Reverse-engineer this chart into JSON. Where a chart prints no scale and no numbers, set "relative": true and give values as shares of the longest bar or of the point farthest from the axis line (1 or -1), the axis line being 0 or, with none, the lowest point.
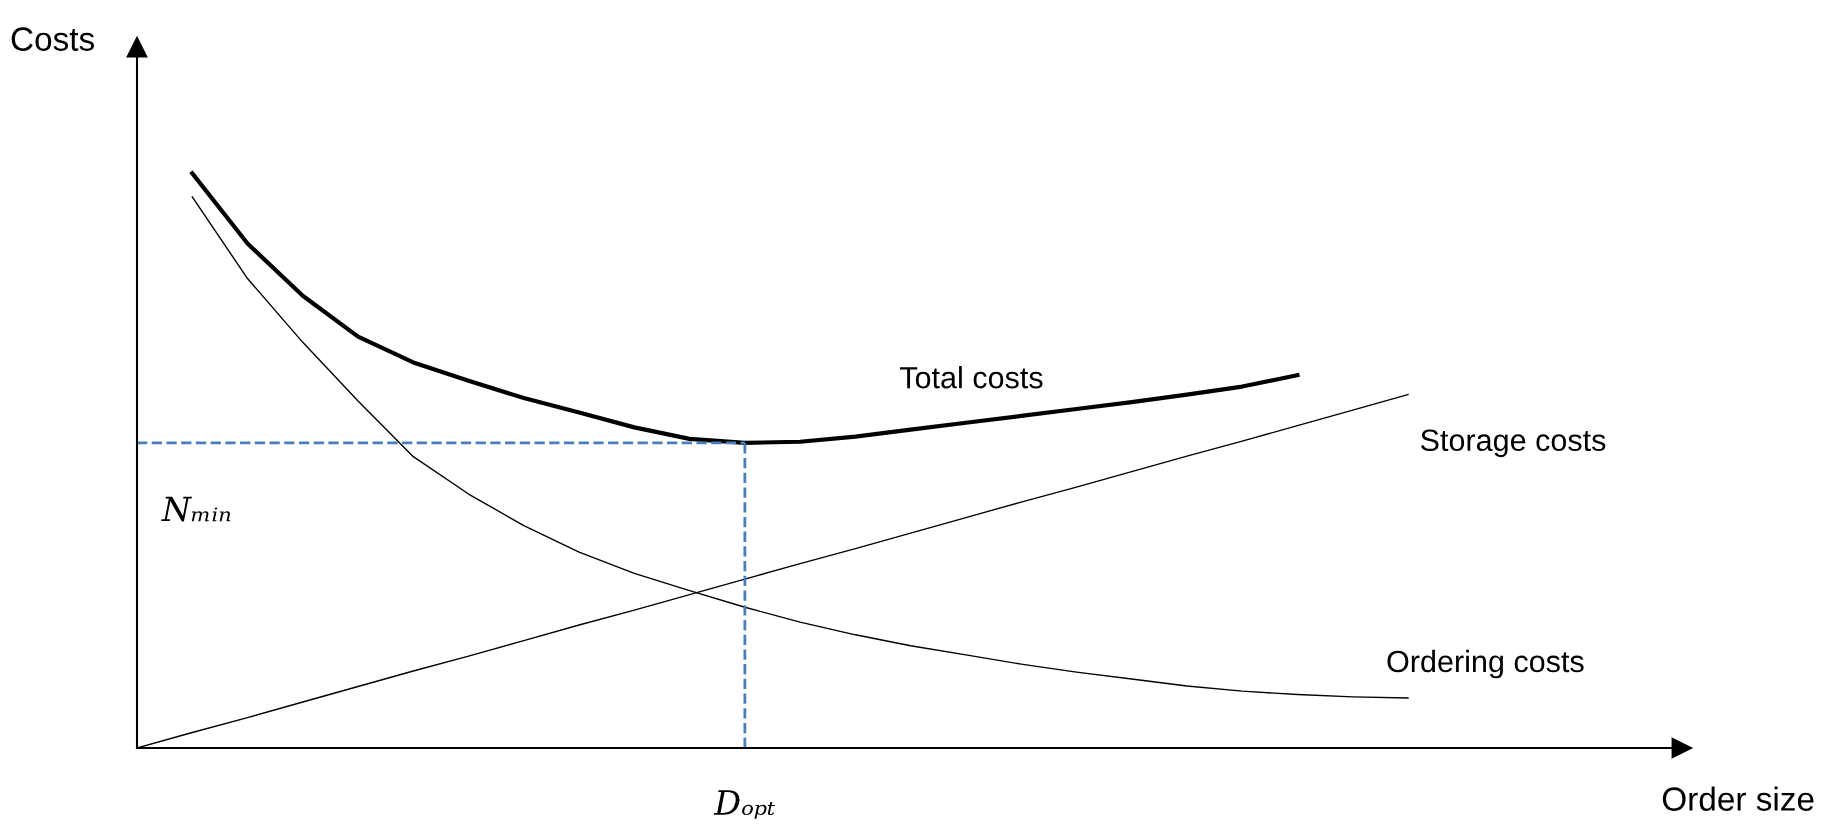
{
  "chart_data": {
    "type": "line",
    "relative": true,
    "ylabel": "Costs",
    "annotations": [
      "Order size",
      "Dₒₚₜ"
    ],
    "categories": [
      null,
      null,
      null,
      null,
      null,
      null,
      null,
      null,
      null,
      null,
      null,
      null,
      null,
      null,
      null,
      null,
      null,
      null,
      null,
      null,
      null,
      null,
      null,
      null
    ],
    "series": [
      {
        "name": "Total costs",
        "color": "#000000",
        "values": [
          null,
          1.0,
          0.878,
          0.787,
          0.716,
          0.671,
          0.639,
          0.609,
          0.584,
          0.558,
          0.538,
          0.531,
          0.533,
          0.542,
          0.554,
          0.566,
          0.578,
          0.59,
          0.602,
          0.615,
          0.629,
          0.649,
          null,
          null
        ]
      },
      {
        "name": "Storage costs",
        "color": "#000000",
        "values": [
          0,
          0.027,
          0.053,
          0.08,
          0.107,
          0.134,
          0.16,
          0.187,
          0.214,
          0.24,
          0.267,
          0.294,
          0.321,
          0.347,
          0.374,
          0.401,
          0.428,
          0.454,
          0.481,
          0.508,
          0.534,
          0.561,
          0.588,
          0.615
        ]
      },
      {
        "name": "Ordering costs",
        "color": "#000000",
        "values": [
          null,
          0.959,
          0.817,
          0.706,
          0.604,
          0.507,
          0.442,
          0.387,
          0.341,
          0.304,
          0.274,
          0.245,
          0.219,
          0.197,
          0.178,
          0.162,
          0.146,
          0.132,
          0.12,
          0.108,
          0.099,
          0.093,
          0.089,
          0.087
        ]
      }
    ],
    "ref_lines": [
      {
        "axis": "y",
        "value": 0.531,
        "label": "Nₘᵢₙ",
        "color": "#4a7ebb",
        "line_style": "dashed"
      }
    ],
    "line_style": "solid"
  }
}
